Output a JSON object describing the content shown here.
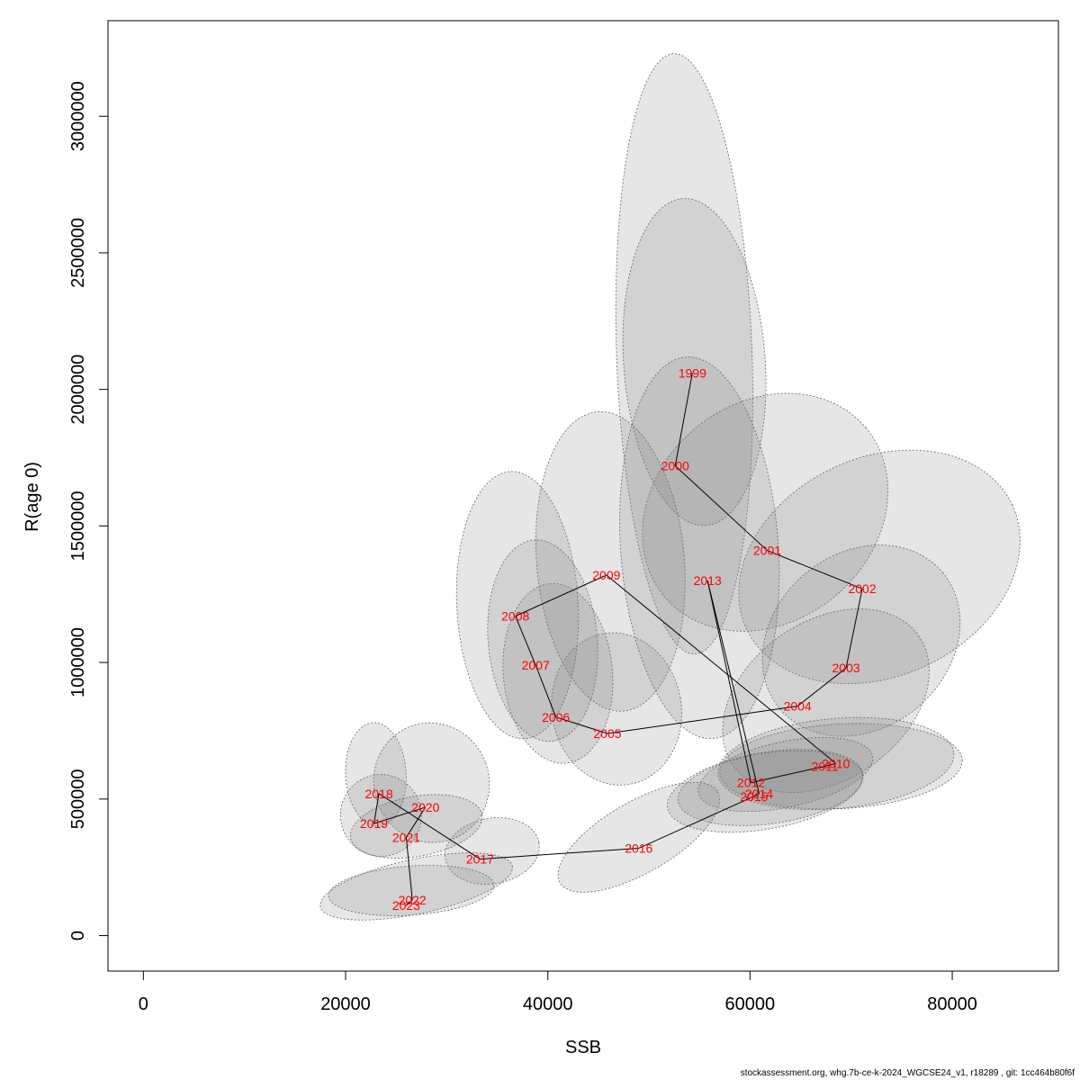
{
  "footer": "stockassessment.org, whg.7b-ce-k-2024_WGCSE24_v1, r18289 , git: 1cc464b80f6f",
  "chart_data": {
    "type": "scatter",
    "title": "",
    "xlabel": "SSB",
    "ylabel": "R(age 0)",
    "xlim": [
      -3500,
      90500
    ],
    "ylim": [
      -130000,
      3350000
    ],
    "xticks": [
      0,
      20000,
      40000,
      60000,
      80000
    ],
    "yticks": [
      0,
      500000,
      1000000,
      1500000,
      2000000,
      2500000,
      3000000
    ],
    "xtick_labels": [
      "0",
      "20000",
      "40000",
      "60000",
      "80000"
    ],
    "ytick_labels": [
      "0",
      "500000",
      "1000000",
      "1500000",
      "2000000",
      "2500000",
      "3000000"
    ],
    "colors": {
      "labels": "#ff0000",
      "ellipse_fill": "#808080",
      "ellipse_stroke": "#666666",
      "path": "#000000"
    },
    "points": [
      {
        "year": "1999",
        "ssb": 54300,
        "r": 2060000,
        "ellipse": {
          "cx": 53500,
          "cy": 2130000,
          "rx": 6700,
          "ry": 1100000,
          "rot": -2
        }
      },
      {
        "year": "2000",
        "ssb": 52600,
        "r": 1720000,
        "ellipse": {
          "cx": 54500,
          "cy": 2100000,
          "rx": 7000,
          "ry": 600000,
          "rot": -4
        }
      },
      {
        "year": "2001",
        "ssb": 61700,
        "r": 1410000,
        "ellipse": {
          "cx": 61500,
          "cy": 1550000,
          "rx": 13000,
          "ry": 400000,
          "rot": -40
        }
      },
      {
        "year": "2002",
        "ssb": 71100,
        "r": 1270000,
        "ellipse": {
          "cx": 72800,
          "cy": 1350000,
          "rx": 14500,
          "ry": 400000,
          "rot": -25
        }
      },
      {
        "year": "2003",
        "ssb": 69500,
        "r": 980000,
        "ellipse": {
          "cx": 71000,
          "cy": 1080000,
          "rx": 10500,
          "ry": 320000,
          "rot": -40
        }
      },
      {
        "year": "2004",
        "ssb": 64700,
        "r": 840000,
        "ellipse": {
          "cx": 67500,
          "cy": 860000,
          "rx": 11200,
          "ry": 290000,
          "rot": -35
        }
      },
      {
        "year": "2005",
        "ssb": 45900,
        "r": 740000,
        "ellipse": {
          "cx": 46800,
          "cy": 830000,
          "rx": 6400,
          "ry": 280000,
          "rot": -10
        }
      },
      {
        "year": "2006",
        "ssb": 40800,
        "r": 800000,
        "ellipse": {
          "cx": 41000,
          "cy": 960000,
          "rx": 5400,
          "ry": 330000,
          "rot": -5
        }
      },
      {
        "year": "2007",
        "ssb": 38800,
        "r": 990000,
        "ellipse": {
          "cx": 39500,
          "cy": 1080000,
          "rx": 5400,
          "ry": 370000,
          "rot": -5
        }
      },
      {
        "year": "2008",
        "ssb": 36800,
        "r": 1170000,
        "ellipse": {
          "cx": 37000,
          "cy": 1210000,
          "rx": 6000,
          "ry": 490000,
          "rot": -3
        }
      },
      {
        "year": "2009",
        "ssb": 45800,
        "r": 1320000,
        "ellipse": {
          "cx": 46200,
          "cy": 1370000,
          "rx": 7300,
          "ry": 550000,
          "rot": -5
        }
      },
      {
        "year": "2010",
        "ssb": 68500,
        "r": 630000,
        "ellipse": {
          "cx": 69000,
          "cy": 620000,
          "rx": 12000,
          "ry": 155000,
          "rot": -3
        }
      },
      {
        "year": "2011",
        "ssb": 67400,
        "r": 620000,
        "ellipse": {
          "cx": 68500,
          "cy": 630000,
          "rx": 11700,
          "ry": 165000,
          "rot": -5
        }
      },
      {
        "year": "2012",
        "ssb": 60100,
        "r": 560000,
        "ellipse": {
          "cx": 63500,
          "cy": 590000,
          "rx": 8800,
          "ry": 120000,
          "rot": -12
        }
      },
      {
        "year": "2013",
        "ssb": 55800,
        "r": 1300000,
        "ellipse": {
          "cx": 55000,
          "cy": 1420000,
          "rx": 7800,
          "ry": 700000,
          "rot": -4
        }
      },
      {
        "year": "2014",
        "ssb": 60900,
        "r": 520000,
        "ellipse": {
          "cx": 62000,
          "cy": 540000,
          "rx": 9200,
          "ry": 130000,
          "rot": -8
        }
      },
      {
        "year": "2015",
        "ssb": 60400,
        "r": 510000,
        "ellipse": {
          "cx": 61500,
          "cy": 530000,
          "rx": 9800,
          "ry": 140000,
          "rot": -10
        }
      },
      {
        "year": "2016",
        "ssb": 49000,
        "r": 320000,
        "ellipse": {
          "cx": 49000,
          "cy": 360000,
          "rx": 9000,
          "ry": 130000,
          "rot": -30
        }
      },
      {
        "year": "2017",
        "ssb": 33300,
        "r": 280000,
        "ellipse": {
          "cx": 34500,
          "cy": 310000,
          "rx": 4700,
          "ry": 120000,
          "rot": -10
        }
      },
      {
        "year": "2018",
        "ssb": 23300,
        "r": 520000,
        "ellipse": {
          "cx": 23000,
          "cy": 590000,
          "rx": 3000,
          "ry": 190000,
          "rot": -3
        }
      },
      {
        "year": "2019",
        "ssb": 22800,
        "r": 410000,
        "ellipse": {
          "cx": 23500,
          "cy": 440000,
          "rx": 4000,
          "ry": 150000,
          "rot": -10
        }
      },
      {
        "year": "2020",
        "ssb": 27900,
        "r": 470000,
        "ellipse": {
          "cx": 28500,
          "cy": 560000,
          "rx": 5700,
          "ry": 220000,
          "rot": -20
        }
      },
      {
        "year": "2021",
        "ssb": 26000,
        "r": 360000,
        "ellipse": {
          "cx": 27000,
          "cy": 400000,
          "rx": 6600,
          "ry": 110000,
          "rot": -10
        }
      },
      {
        "year": "2022",
        "ssb": 26600,
        "r": 130000,
        "ellipse": {
          "cx": 27000,
          "cy": 180000,
          "rx": 9700,
          "ry": 100000,
          "rot": -12
        }
      },
      {
        "year": "2023",
        "ssb": 26000,
        "r": 110000,
        "ellipse": {
          "cx": 26500,
          "cy": 165000,
          "rx": 8200,
          "ry": 90000,
          "rot": -4
        }
      }
    ]
  }
}
